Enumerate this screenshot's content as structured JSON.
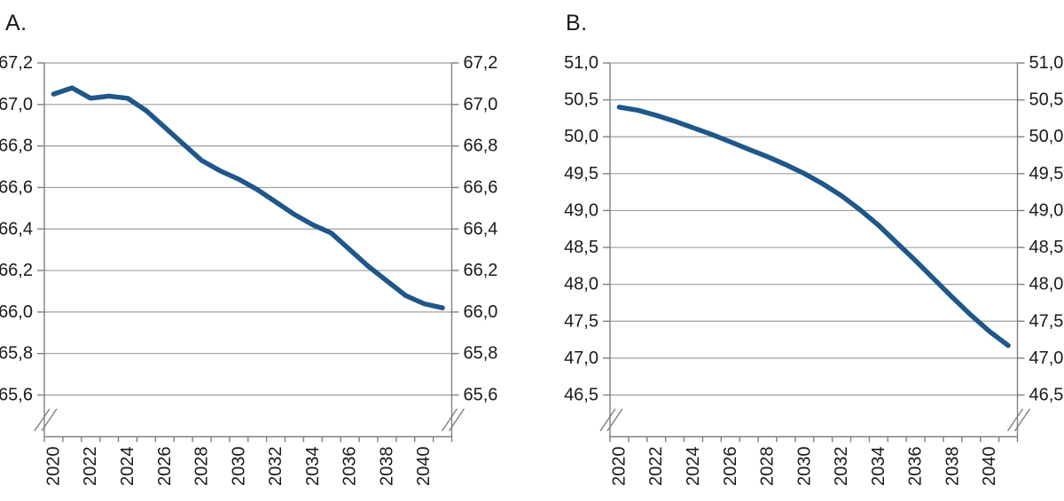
{
  "page": {
    "background_color": "#ffffff",
    "text_color": "#1a1a1a",
    "gridline_color": "#9d9d9d",
    "axis_color": "#7f7f7f",
    "line_color": "#1f5789"
  },
  "chart_data": [
    {
      "panel_label": "A.",
      "type": "line",
      "x": [
        2020,
        2021,
        2022,
        2023,
        2024,
        2025,
        2026,
        2027,
        2028,
        2029,
        2030,
        2031,
        2032,
        2033,
        2034,
        2035,
        2036,
        2037,
        2038,
        2039,
        2040,
        2041
      ],
      "values": [
        67.05,
        67.08,
        67.03,
        67.04,
        67.03,
        66.97,
        66.89,
        66.81,
        66.73,
        66.68,
        66.64,
        66.59,
        66.53,
        66.47,
        66.42,
        66.38,
        66.3,
        66.22,
        66.15,
        66.08,
        66.04,
        66.02
      ],
      "title": "",
      "xlabel": "",
      "ylabel": "",
      "y_max": 67.2,
      "y_min": 65.6,
      "y_step": 0.2,
      "y_tick_labels": [
        "67,2",
        "67,0",
        "66,8",
        "66,6",
        "66,4",
        "66,2",
        "66,0",
        "65,8",
        "65,6"
      ],
      "x_tick_labels": [
        "2020",
        "2022",
        "2024",
        "2026",
        "2028",
        "2030",
        "2032",
        "2034",
        "2036",
        "2038",
        "2040"
      ],
      "x_tick_label_rotation_deg": -90,
      "y_axis_sides": [
        "left",
        "right"
      ],
      "axis_break_at_bottom": true,
      "decimal_separator": "comma",
      "grid": true,
      "legend": "none"
    },
    {
      "panel_label": "B.",
      "type": "line",
      "x": [
        2020,
        2021,
        2022,
        2023,
        2024,
        2025,
        2026,
        2027,
        2028,
        2029,
        2030,
        2031,
        2032,
        2033,
        2034,
        2035,
        2036,
        2037,
        2038,
        2039,
        2040,
        2041
      ],
      "values": [
        50.4,
        50.36,
        50.29,
        50.21,
        50.12,
        50.03,
        49.93,
        49.83,
        49.73,
        49.62,
        49.5,
        49.36,
        49.2,
        49.01,
        48.8,
        48.56,
        48.32,
        48.07,
        47.82,
        47.58,
        47.36,
        47.17
      ],
      "title": "",
      "xlabel": "",
      "ylabel": "",
      "y_max": 51.0,
      "y_min": 46.5,
      "y_step": 0.5,
      "y_tick_labels": [
        "51,0",
        "50,5",
        "50,0",
        "49,5",
        "49,0",
        "48,5",
        "48,0",
        "47,5",
        "47,0",
        "46,5"
      ],
      "x_tick_labels": [
        "2020",
        "2022",
        "2024",
        "2026",
        "2028",
        "2030",
        "2032",
        "2034",
        "2036",
        "2038",
        "2040"
      ],
      "x_tick_label_rotation_deg": -90,
      "y_axis_sides": [
        "left",
        "right"
      ],
      "axis_break_at_bottom": true,
      "decimal_separator": "comma",
      "grid": true,
      "legend": "none"
    }
  ]
}
